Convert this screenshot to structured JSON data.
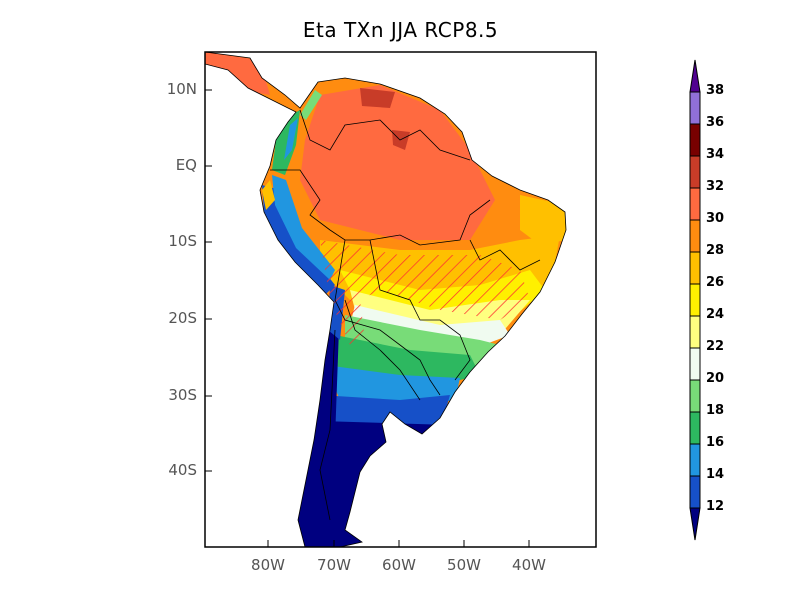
{
  "title": "Eta TXn JJA RCP8.5",
  "map": {
    "lat_labels": [
      "10N",
      "EQ",
      "10S",
      "20S",
      "30S",
      "40S"
    ],
    "lon_labels": [
      "80W",
      "70W",
      "60W",
      "50W",
      "40W"
    ],
    "extent": {
      "lon": [
        -90,
        -30
      ],
      "lat": [
        -50,
        15
      ]
    },
    "hatching_color": "#ff3030"
  },
  "colorbar": {
    "levels": [
      "12",
      "14",
      "16",
      "18",
      "20",
      "22",
      "24",
      "26",
      "28",
      "30",
      "32",
      "34",
      "36",
      "38"
    ],
    "colors": [
      "#000080",
      "#1650c8",
      "#2196e0",
      "#2db860",
      "#78dc78",
      "#f0fbf0",
      "#ffff80",
      "#fff000",
      "#ffc000",
      "#ff8c10",
      "#ff6a40",
      "#c83c28",
      "#780000",
      "#9070d8",
      "#500090"
    ]
  }
}
